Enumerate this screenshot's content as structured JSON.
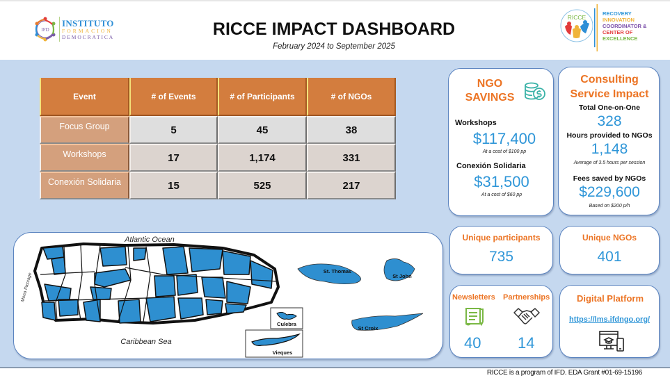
{
  "header": {
    "title": "RICCE IMPACT DASHBOARD",
    "subtitle": "February 2024 to September 2025",
    "ifd_logo": {
      "line1": "INSTITUTO",
      "line2": "FORMACION",
      "line3": "DEMOCRATICA",
      "emblem": "IFD"
    },
    "ricce_logo": {
      "emblem": "RICCE",
      "lines": [
        "RECOVERY",
        "INNOVATION",
        "COORDINATOR &",
        "CENTER OF",
        "EXCELLENCE"
      ]
    }
  },
  "events_table": {
    "columns": [
      "Event",
      "# of Events",
      "# of Participants",
      "# of NGOs"
    ],
    "rows": [
      {
        "event": "Focus Group",
        "events": "5",
        "participants": "45",
        "ngos": "38"
      },
      {
        "event": "Workshops",
        "events": "17",
        "participants": "1,174",
        "ngos": "331"
      },
      {
        "event": "Conexión Solidaria",
        "events": "15",
        "participants": "525",
        "ngos": "217"
      }
    ]
  },
  "ngo_savings": {
    "title": "NGO SAVINGS",
    "icon": "coins-dollar-icon",
    "workshops_label": "Workshops",
    "workshops_value": "$117,400",
    "workshops_note": "At a cost of $100 pp",
    "conexion_label": "Conexión Solidaria",
    "conexion_value": "$31,500",
    "conexion_note": "At a cost of $60 pp"
  },
  "consulting": {
    "title_line1": "Consulting",
    "title_line2": "Service Impact",
    "total_label": "Total One-on-One",
    "total_value": "328",
    "hours_label": "Hours provided to NGOs",
    "hours_value": "1,148",
    "hours_note": "Average of 3.5 hours per session",
    "fees_label": "Fees saved by NGOs",
    "fees_value": "$229,600",
    "fees_note": "Based on $200 p/h"
  },
  "unique_participants": {
    "label": "Unique participants",
    "value": "735"
  },
  "unique_ngos": {
    "label": "Unique NGOs",
    "value": "401"
  },
  "newsletters": {
    "label": "Newsletters",
    "value": "40",
    "icon": "newsletter-icon"
  },
  "partnerships": {
    "label": "Partnerships",
    "value": "14",
    "icon": "handshake-icon"
  },
  "digital_platform": {
    "label": "Digital Platform",
    "url": "https://lms.ifdngo.org/",
    "icon": "computer-elearning-icon"
  },
  "map": {
    "north_label": "Atlantic Ocean",
    "south_label": "Caribbean Sea",
    "west_label": "Mona Passage",
    "insets": [
      "Culebra",
      "Vieques"
    ],
    "usvi": [
      "St. Thomas",
      "St John",
      "St Croix"
    ],
    "colors": {
      "served": "#2e8fd0",
      "not_served": "#ffffff",
      "outline": "#111111"
    }
  },
  "footer": {
    "text": "RICCE is a program of IFD. EDA Grant #01-69-15196"
  },
  "colors": {
    "accent_orange": "#ec7424",
    "value_blue": "#2f96d8",
    "panel_bg": "#c5d8ef",
    "table_header": "#d37d3e"
  }
}
